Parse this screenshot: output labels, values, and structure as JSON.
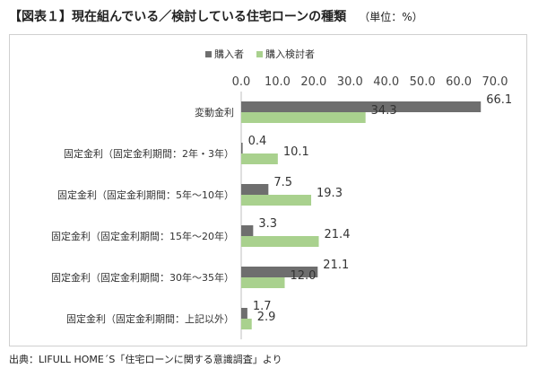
{
  "title": "【図表１】現在組んでいる／検討している住宅ローンの種類",
  "unit_label": "（単位：%）",
  "source": "出典：LIFULL HOME´S「住宅ローンに関する意識調査」より",
  "chart_data": {
    "type": "bar",
    "orientation": "horizontal",
    "categories": [
      "変動金利",
      "固定金利（固定金利期間：2年・3年）",
      "固定金利（固定金利期間：5年～10年）",
      "固定金利（固定金利期間：15年～20年）",
      "固定金利（固定金利期間：30年～35年）",
      "固定金利（固定金利期間：上記以外）"
    ],
    "series": [
      {
        "name": "購入者",
        "values": [
          66.1,
          0.4,
          7.5,
          3.3,
          21.1,
          1.7
        ],
        "color": "#6e6e6e"
      },
      {
        "name": "購入検討者",
        "values": [
          34.3,
          10.1,
          19.3,
          21.4,
          12.0,
          2.9
        ],
        "color": "#a9d18e"
      }
    ],
    "xlim": [
      0,
      70
    ],
    "ticks": [
      "0.0",
      "10.0",
      "20.0",
      "30.0",
      "40.0",
      "50.0",
      "60.0",
      "70.0"
    ],
    "legend_position": "top",
    "grid": false
  }
}
